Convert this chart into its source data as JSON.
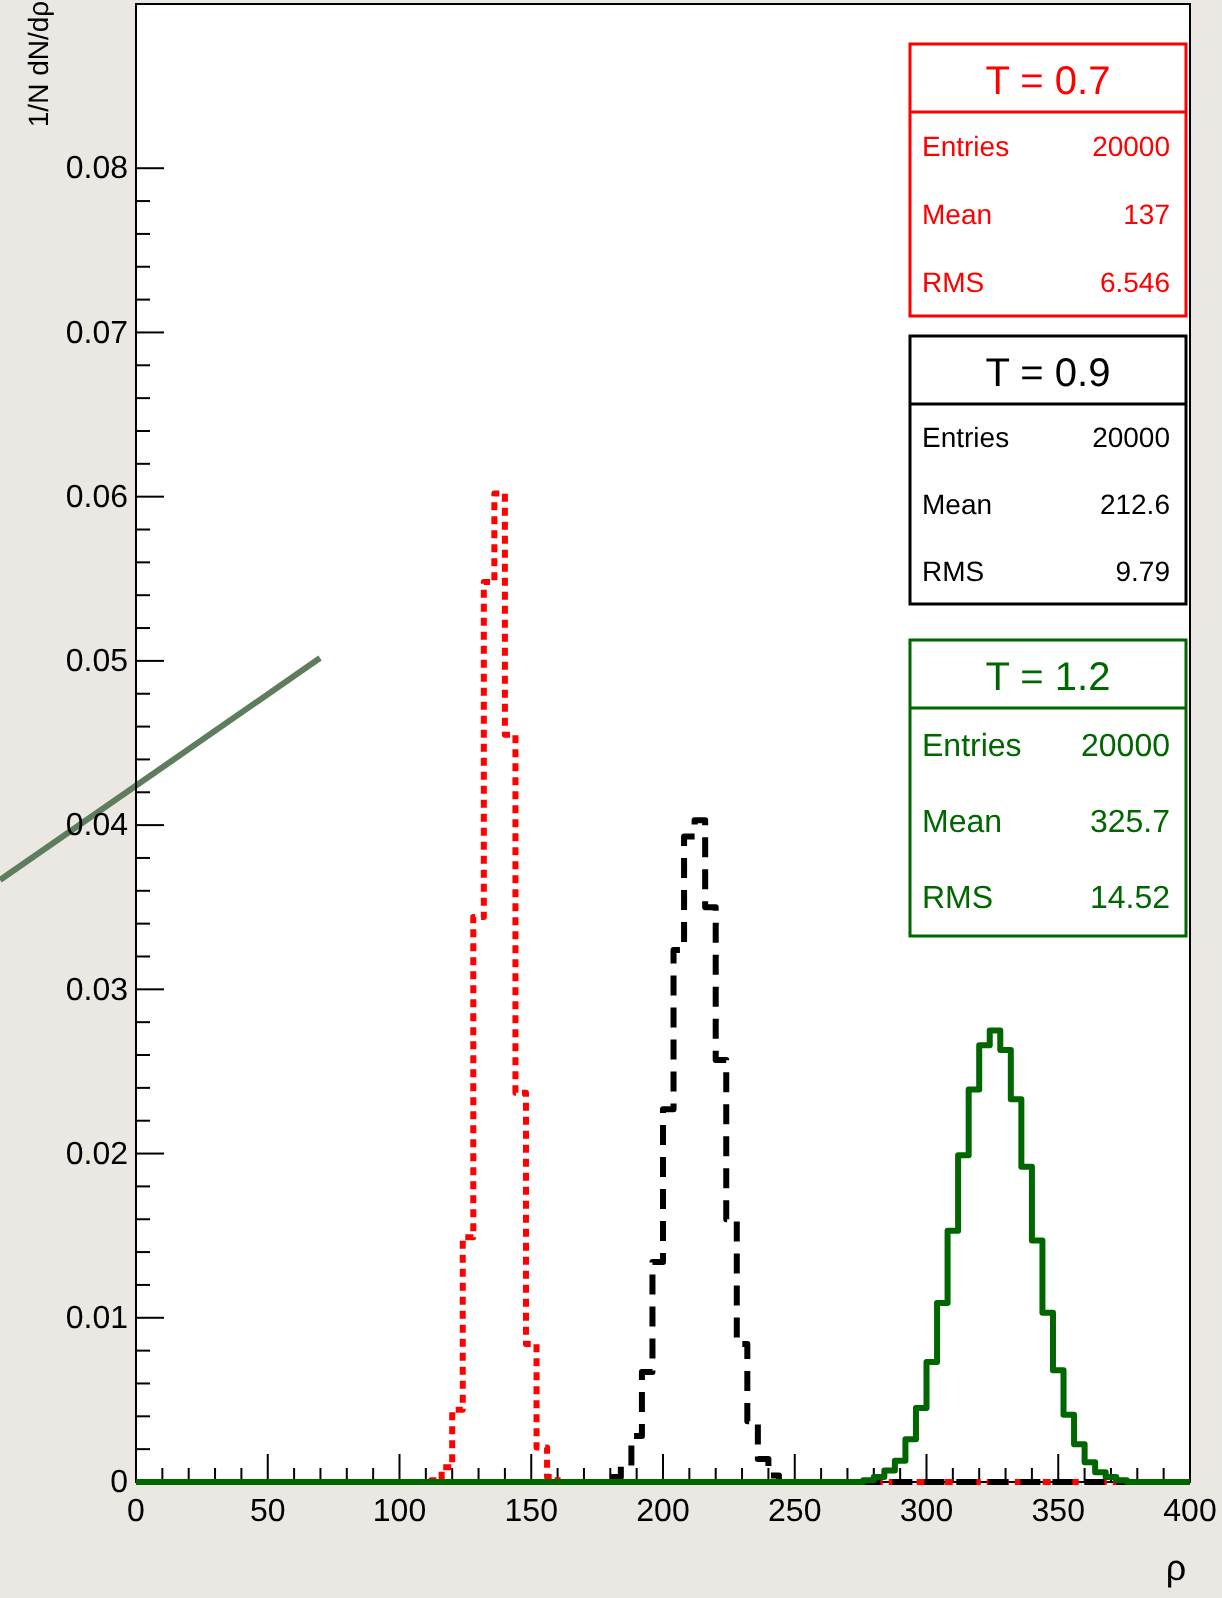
{
  "chart_data": {
    "type": "step",
    "xlabel": "ρ",
    "ylabel": "1/N dN/dρ",
    "xlim": [
      0,
      400
    ],
    "ylim": [
      0,
      0.09
    ],
    "xticks": [
      0,
      50,
      100,
      150,
      200,
      250,
      300,
      350,
      400
    ],
    "yticks": [
      0,
      0.01,
      0.02,
      0.03,
      0.04,
      0.05,
      0.06,
      0.07,
      0.08
    ],
    "legend": "top right",
    "series": [
      {
        "name": "T = 0.7",
        "color": "#ff0000",
        "line_style": "dotted",
        "x": [
          0,
          112,
          116,
          120,
          124,
          128,
          132,
          136,
          140,
          144,
          148,
          152,
          156,
          160,
          400
        ],
        "values": [
          0,
          0.0001,
          0.0009,
          0.0044,
          0.0149,
          0.0344,
          0.0548,
          0.0602,
          0.0455,
          0.0237,
          0.0084,
          0.0021,
          0.0003,
          0,
          0
        ]
      },
      {
        "name": "T = 0.9",
        "color": "#000000",
        "line_style": "dashed",
        "x": [
          0,
          180,
          184,
          188,
          192,
          196,
          200,
          204,
          208,
          212,
          216,
          220,
          224,
          228,
          232,
          236,
          240,
          244,
          400
        ],
        "values": [
          0,
          0.0003,
          0.001,
          0.0028,
          0.0067,
          0.0134,
          0.0227,
          0.0324,
          0.0393,
          0.0403,
          0.035,
          0.0257,
          0.016,
          0.0084,
          0.0037,
          0.0014,
          0.0004,
          0,
          0
        ]
      },
      {
        "name": "T = 1.2",
        "color": "#006600",
        "line_style": "solid",
        "x": [
          0,
          276,
          280,
          284,
          288,
          292,
          296,
          300,
          304,
          308,
          312,
          316,
          320,
          324,
          328,
          332,
          336,
          340,
          344,
          348,
          352,
          356,
          360,
          364,
          368,
          372,
          376,
          400
        ],
        "values": [
          0,
          0.0001,
          0.0003,
          0.0007,
          0.0013,
          0.0026,
          0.0045,
          0.0073,
          0.0109,
          0.0153,
          0.0199,
          0.0239,
          0.0266,
          0.0275,
          0.0263,
          0.0233,
          0.0192,
          0.0147,
          0.0103,
          0.0068,
          0.0041,
          0.0023,
          0.0012,
          0.0006,
          0.0003,
          0.0001,
          0,
          0
        ]
      }
    ],
    "annotations": [
      "Entries 20000",
      "Mean 137",
      "RMS 6.546",
      "Entries 20000",
      "Mean 212.6",
      "RMS 9.79",
      "Entries 20000",
      "Mean 325.7",
      "RMS 14.52"
    ]
  }
}
